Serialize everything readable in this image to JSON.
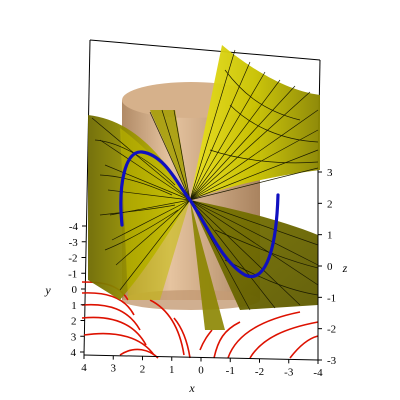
{
  "plot": {
    "axis_labels": {
      "x": "x",
      "y": "y",
      "z": "z"
    },
    "x_ticks": [
      "4",
      "3",
      "2",
      "1",
      "0",
      "-1",
      "-2",
      "-3",
      "-4"
    ],
    "y_ticks": [
      "-4",
      "-3",
      "-2",
      "-1",
      "0",
      "1",
      "2",
      "3",
      "4"
    ],
    "z_ticks": [
      "3",
      "2",
      "1",
      "0",
      "-1",
      "-2",
      "-3"
    ],
    "colors": {
      "surface": "#d8d000",
      "surface_shade": "#8f8a00",
      "surface_mesh": "#1c1c00",
      "cylinder": "#d9b48c",
      "cylinder_shade": "#c29870",
      "curve": "#1010c0",
      "contours": "#dd1100",
      "box": "#000000"
    }
  }
}
